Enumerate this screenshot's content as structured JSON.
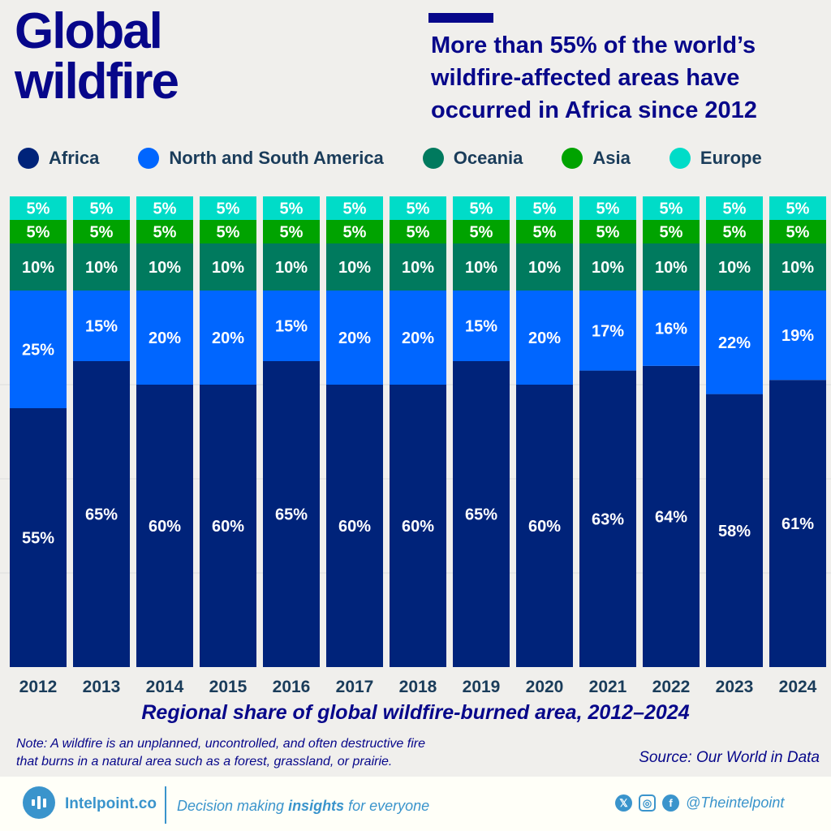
{
  "header": {
    "title_line1": "Global",
    "title_line2": "wildfire",
    "subtitle_line1": "More than 55% of the world’s",
    "subtitle_line2": "wildfire-affected areas have",
    "subtitle_line3": "occurred in Africa since 2012"
  },
  "chart_data": {
    "type": "bar",
    "stacked": true,
    "ylim": [
      0,
      100
    ],
    "legend": "top",
    "title": "Regional share of global wildfire-burned area, 2012–2024",
    "categories": [
      "2012",
      "2013",
      "2014",
      "2015",
      "2016",
      "2017",
      "2018",
      "2019",
      "2020",
      "2021",
      "2022",
      "2023",
      "2024"
    ],
    "series": [
      {
        "name": "Africa",
        "color": "#00237a",
        "values": [
          55,
          65,
          60,
          60,
          65,
          60,
          60,
          65,
          60,
          63,
          64,
          58,
          61
        ]
      },
      {
        "name": "North and South America",
        "color": "#0066ff",
        "values": [
          25,
          15,
          20,
          20,
          15,
          20,
          20,
          15,
          20,
          17,
          16,
          22,
          19
        ]
      },
      {
        "name": "Oceania",
        "color": "#007a5e",
        "values": [
          10,
          10,
          10,
          10,
          10,
          10,
          10,
          10,
          10,
          10,
          10,
          10,
          10
        ]
      },
      {
        "name": "Asia",
        "color": "#00a300",
        "values": [
          5,
          5,
          5,
          5,
          5,
          5,
          5,
          5,
          5,
          5,
          5,
          5,
          5
        ]
      },
      {
        "name": "Europe",
        "color": "#00dcc8",
        "values": [
          5,
          5,
          5,
          5,
          5,
          5,
          5,
          5,
          5,
          5,
          5,
          5,
          5
        ]
      }
    ]
  },
  "note_line1": "Note: A wildfire is an unplanned, uncontrolled, and often destructive fire",
  "note_line2": "that burns in a natural area such as a forest, grassland, or prairie.",
  "source": "Source: Our World in Data",
  "footer": {
    "brand": "Intelpoint.co",
    "tag_pre": "Decision making ",
    "tag_bold": "insights",
    "tag_post": " for everyone",
    "handle": "@Theintelpoint"
  }
}
